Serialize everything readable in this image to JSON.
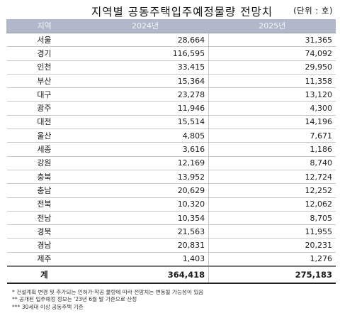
{
  "title": "지역별 공동주택입주예정물량 전망치",
  "unit": "(단위 : 호)",
  "table": {
    "headers": [
      "지역",
      "2024년",
      "2025년"
    ],
    "rows": [
      [
        "서울",
        "28,664",
        "31,365"
      ],
      [
        "경기",
        "116,595",
        "74,092"
      ],
      [
        "인천",
        "33,415",
        "29,950"
      ],
      [
        "부산",
        "15,364",
        "11,358"
      ],
      [
        "대구",
        "23,278",
        "13,120"
      ],
      [
        "광주",
        "11,946",
        "4,300"
      ],
      [
        "대전",
        "15,514",
        "14,196"
      ],
      [
        "울산",
        "4,805",
        "7,671"
      ],
      [
        "세종",
        "3,616",
        "1,186"
      ],
      [
        "강원",
        "12,169",
        "8,740"
      ],
      [
        "충북",
        "13,952",
        "12,724"
      ],
      [
        "충남",
        "20,629",
        "12,252"
      ],
      [
        "전북",
        "10,320",
        "12,062"
      ],
      [
        "전남",
        "10,354",
        "8,705"
      ],
      [
        "경북",
        "21,563",
        "11,955"
      ],
      [
        "경남",
        "20,831",
        "20,231"
      ],
      [
        "제주",
        "1,403",
        "1,276"
      ]
    ],
    "total": [
      "계",
      "364,418",
      "275,183"
    ]
  },
  "notes": [
    "* 건설계획 변경 및 추가되는 인허가·착공 물량에 따라 전망치는 변동될 가능성이 있음",
    "** 공개된 입주예정 정보는 '23년 6월 말 기준으로 산정",
    "*** 30세대 이상 공동주택 기준"
  ]
}
